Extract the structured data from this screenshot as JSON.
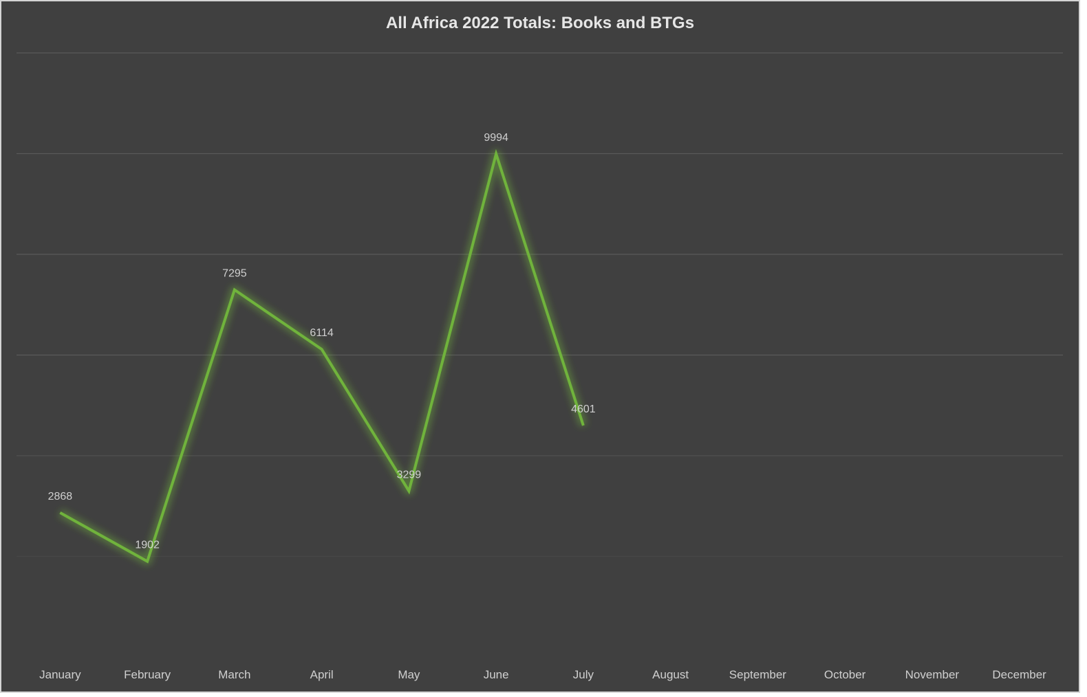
{
  "chart_data": {
    "type": "line",
    "title": "All Africa 2022 Totals: Books and BTGs",
    "xlabel": "",
    "ylabel": "",
    "categories": [
      "January",
      "February",
      "March",
      "April",
      "May",
      "June",
      "July",
      "August",
      "September",
      "October",
      "November",
      "December"
    ],
    "series": [
      {
        "name": "Totals",
        "values": [
          2868,
          1902,
          7295,
          6114,
          3299,
          9994,
          4601,
          null,
          null,
          null,
          null,
          null
        ]
      }
    ],
    "ylim": [
      0,
      12000
    ],
    "y_gridlines": [
      2000,
      4000,
      6000,
      8000,
      10000,
      12000
    ],
    "grid": true,
    "legend": "none",
    "data_labels": true,
    "colors": {
      "line": "#70b33c",
      "background": "#404040",
      "grid": "#595959",
      "text": "#d0d0d0"
    }
  }
}
